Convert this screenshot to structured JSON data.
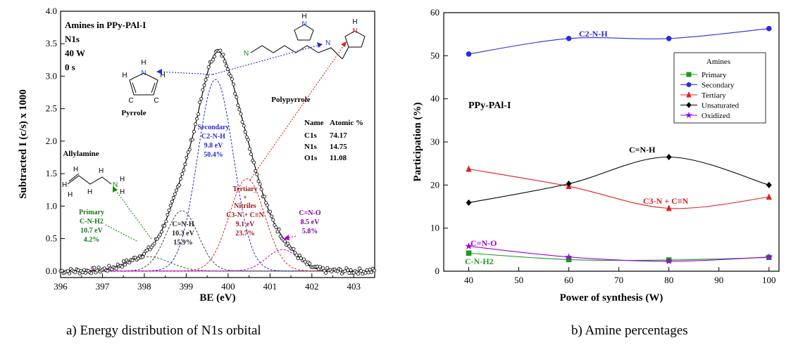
{
  "chart_data": [
    {
      "type": "line",
      "panel": "a",
      "caption": "a) Energy distribution of N1s orbital",
      "xlabel": "BE (eV)",
      "ylabel": "Subtracted I (c/s) x 1000",
      "xlim": [
        396,
        403.5
      ],
      "ylim": [
        -0.1,
        4.0
      ],
      "xticks": [
        "396",
        "397",
        "398",
        "399",
        "400",
        "401",
        "402",
        "403"
      ],
      "yticks": [
        "0.0",
        "0.5",
        "1.0",
        "1.5",
        "2.0",
        "2.5",
        "3.0",
        "3.5",
        "4.0"
      ],
      "info_lines": [
        "Amines in PPy-PAl-I",
        "N1s",
        "40 W",
        "0 s"
      ],
      "composition": {
        "headers": [
          "Name",
          "Atomic %"
        ],
        "rows": [
          [
            "C1s",
            "74.17"
          ],
          [
            "N1s",
            "14.75"
          ],
          [
            "O1s",
            "11.08"
          ]
        ]
      },
      "molecule_labels": {
        "pyrrole": "Pyrrole",
        "polypyrrole": "Polypyrrole",
        "allylamine": "Allylamine"
      },
      "atoms": {
        "N": "N",
        "H": "H",
        "C": "C"
      },
      "series": [
        {
          "center": 398.1,
          "fwhm": 1.2,
          "height": 0.22,
          "color": "#1a7a1a",
          "label": [
            "Primary",
            "C-N-H2",
            "10.7 eV",
            "4.2%"
          ]
        },
        {
          "center": 398.9,
          "fwhm": 0.9,
          "height": 0.93,
          "color": "#404040",
          "label": [
            "C=N-H",
            "10.3 eV",
            "15.9%"
          ]
        },
        {
          "center": 399.7,
          "fwhm": 1.0,
          "height": 2.95,
          "color": "#2a2ad0",
          "label": [
            "Secondary",
            "C2-N-H",
            "9.8 eV",
            "50.4%"
          ]
        },
        {
          "center": 400.45,
          "fwhm": 1.0,
          "height": 1.42,
          "color": "#e02020",
          "label": [
            "Tertiary",
            "+",
            "Nitriles",
            "C3-N + C≡N",
            "9.1 eV",
            "23.7%"
          ]
        },
        {
          "center": 401.3,
          "fwhm": 0.9,
          "height": 0.33,
          "color": "#b000d0",
          "label": [
            "C=N-O",
            "8.5 eV",
            "5.8%"
          ]
        }
      ]
    },
    {
      "type": "line",
      "panel": "b",
      "caption": "b) Amine percentages",
      "xlabel": "Power of synthesis (W)",
      "ylabel": "Participation (%)",
      "xlim": [
        35,
        102
      ],
      "ylim": [
        0,
        60
      ],
      "xticks": [
        40,
        50,
        60,
        70,
        80,
        90,
        100
      ],
      "yticks": [
        0,
        10,
        20,
        30,
        40,
        50,
        60
      ],
      "annotation": "PPy-PAl-I",
      "legend_title": "Amines",
      "x": [
        40,
        60,
        80,
        100
      ],
      "series": [
        {
          "name": "Primary",
          "marker": "square",
          "color": "#1a9a1a",
          "values": [
            4.2,
            2.7,
            2.6,
            3.2
          ],
          "curve_label": "C-N-H2"
        },
        {
          "name": "Secondary",
          "marker": "circle",
          "color": "#2a2ae0",
          "values": [
            50.4,
            54.0,
            54.0,
            56.3
          ],
          "curve_label": "C2-N-H"
        },
        {
          "name": "Tertiary",
          "marker": "triangle",
          "color": "#e02020",
          "values": [
            23.7,
            19.7,
            14.6,
            17.2
          ],
          "curve_label": "C3-N + C≡N"
        },
        {
          "name": "Unsaturated",
          "marker": "diamond",
          "color": "#000000",
          "values": [
            15.9,
            20.3,
            26.5,
            20.0
          ],
          "curve_label": "C=N-H"
        },
        {
          "name": "Oxidized",
          "marker": "star",
          "color": "#a000e0",
          "values": [
            5.8,
            3.3,
            2.3,
            3.3
          ],
          "curve_label": "C=N-O"
        }
      ]
    }
  ]
}
